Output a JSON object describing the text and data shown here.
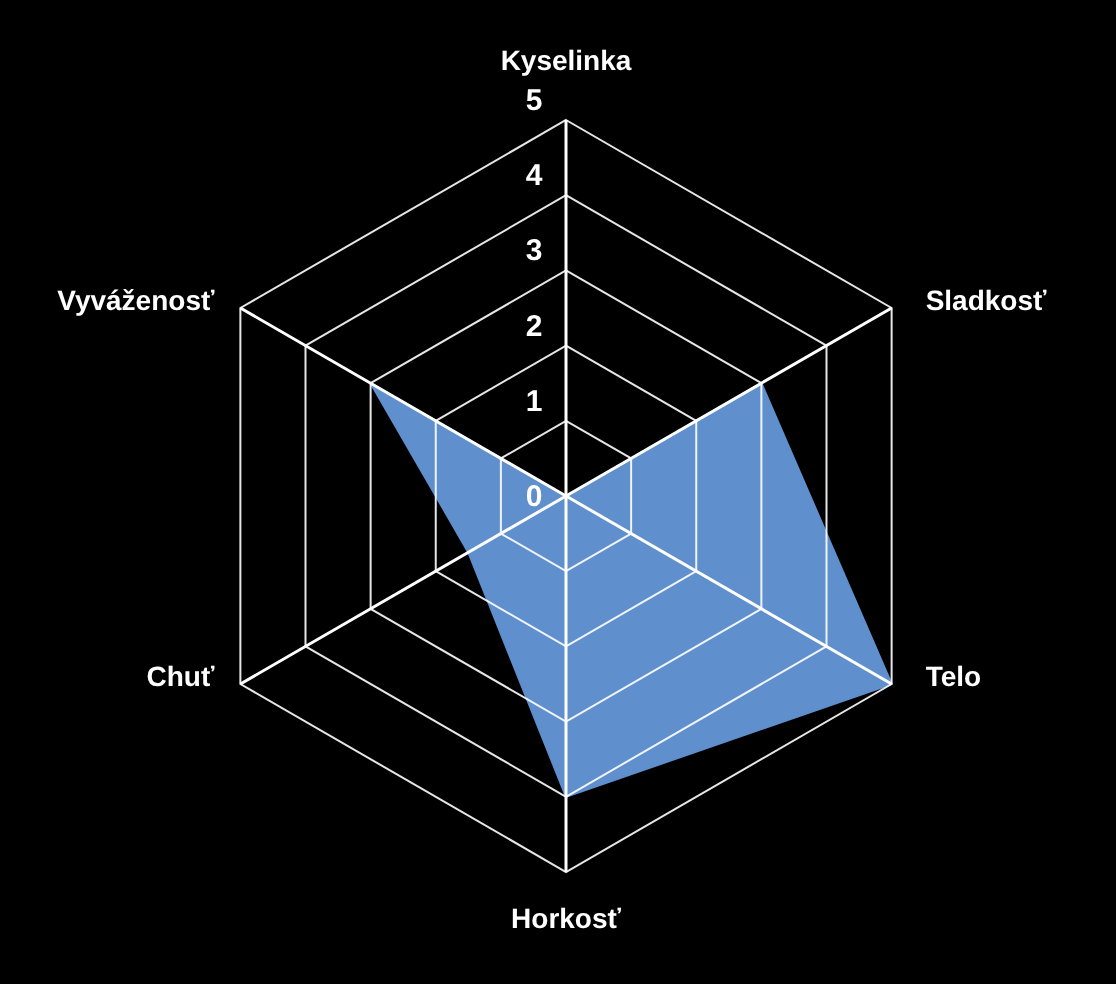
{
  "chart_data": {
    "type": "radar",
    "categories": [
      "Kyselinka",
      "Sladkosť",
      "Telo",
      "Horkosť",
      "Chuť",
      "Vyváženosť"
    ],
    "series": [
      {
        "color": "#5f8fcd",
        "values": [
          0,
          3,
          5,
          4,
          1.5,
          3
        ]
      }
    ],
    "ylim": [
      0,
      5
    ],
    "yticks": [
      0,
      1,
      2,
      3,
      4,
      5
    ],
    "grid": true
  }
}
